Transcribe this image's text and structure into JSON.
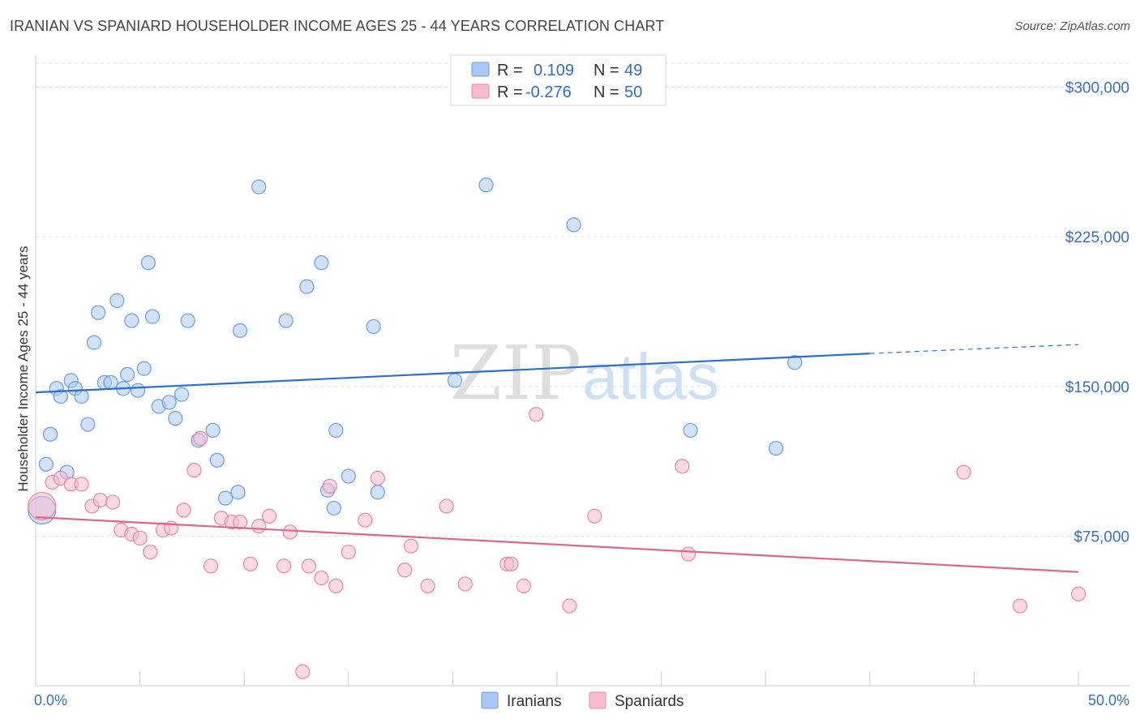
{
  "title": "IRANIAN VS SPANIARD HOUSEHOLDER INCOME AGES 25 - 44 YEARS CORRELATION CHART",
  "source": "Source: ZipAtlas.com",
  "watermark": {
    "zip": "ZIP",
    "atlas": "atlas"
  },
  "colors": {
    "iranians_fill": "#a9c9f2",
    "iranians_stroke": "#6b9ee0",
    "iranians_line": "#2a6fd0",
    "spaniards_fill": "#f7bccd",
    "spaniards_stroke": "#e8879f",
    "spaniards_line": "#e0648e",
    "tick_text": "#3a6fc4",
    "grid": "#dddddd"
  },
  "legend": {
    "rows": [
      {
        "r_label": "R =",
        "r_value": "0.109",
        "n_label": "N =",
        "n_value": "49"
      },
      {
        "r_label": "R =",
        "r_value": "-0.276",
        "n_label": "N =",
        "n_value": "50"
      }
    ]
  },
  "bottom_legend": [
    "Iranians",
    "Spaniards"
  ],
  "chart_data": {
    "type": "scatter",
    "title": "IRANIAN VS SPANIARD HOUSEHOLDER INCOME AGES 25 - 44 YEARS CORRELATION CHART",
    "xlabel": "",
    "ylabel": "Householder Income Ages 25 - 44 years",
    "xlim": [
      0,
      50
    ],
    "ylim": [
      0,
      312000
    ],
    "x_tick_labels": [
      "0.0%",
      "50.0%"
    ],
    "y_ticks": [
      75000,
      150000,
      225000,
      300000
    ],
    "y_tick_labels": [
      "$75,000",
      "$150,000",
      "$225,000",
      "$300,000"
    ],
    "grid": true,
    "legend_position": "top-center",
    "series": [
      {
        "name": "Iranians",
        "r": 0.109,
        "n": 49,
        "trend": {
          "x": [
            0,
            40,
            50
          ],
          "y": [
            147000,
            166500,
            171000
          ],
          "solid_until": 40
        },
        "points": [
          {
            "x": 0.3,
            "y": 88000,
            "big": true
          },
          {
            "x": 0.5,
            "y": 111000
          },
          {
            "x": 0.7,
            "y": 126000
          },
          {
            "x": 1.0,
            "y": 149000
          },
          {
            "x": 1.2,
            "y": 145000
          },
          {
            "x": 1.5,
            "y": 107000
          },
          {
            "x": 1.7,
            "y": 153000
          },
          {
            "x": 1.9,
            "y": 149000
          },
          {
            "x": 2.2,
            "y": 145000
          },
          {
            "x": 2.5,
            "y": 131000
          },
          {
            "x": 2.8,
            "y": 172000
          },
          {
            "x": 3.0,
            "y": 187000
          },
          {
            "x": 3.3,
            "y": 152000
          },
          {
            "x": 3.6,
            "y": 152000
          },
          {
            "x": 3.9,
            "y": 193000
          },
          {
            "x": 4.2,
            "y": 149000
          },
          {
            "x": 4.4,
            "y": 156000
          },
          {
            "x": 4.6,
            "y": 183000
          },
          {
            "x": 4.9,
            "y": 148000
          },
          {
            "x": 5.2,
            "y": 159000
          },
          {
            "x": 5.4,
            "y": 212000
          },
          {
            "x": 5.6,
            "y": 185000
          },
          {
            "x": 5.9,
            "y": 140000
          },
          {
            "x": 6.4,
            "y": 142000
          },
          {
            "x": 6.7,
            "y": 134000
          },
          {
            "x": 7.0,
            "y": 146000
          },
          {
            "x": 7.3,
            "y": 183000
          },
          {
            "x": 7.8,
            "y": 123000
          },
          {
            "x": 8.5,
            "y": 128000
          },
          {
            "x": 8.7,
            "y": 113000
          },
          {
            "x": 9.1,
            "y": 94000
          },
          {
            "x": 9.7,
            "y": 97000
          },
          {
            "x": 9.8,
            "y": 178000
          },
          {
            "x": 10.7,
            "y": 250000
          },
          {
            "x": 12.0,
            "y": 183000
          },
          {
            "x": 13.0,
            "y": 200000
          },
          {
            "x": 13.7,
            "y": 212000
          },
          {
            "x": 14.0,
            "y": 98000
          },
          {
            "x": 14.4,
            "y": 128000
          },
          {
            "x": 14.3,
            "y": 89000
          },
          {
            "x": 15.0,
            "y": 105000
          },
          {
            "x": 16.2,
            "y": 180000
          },
          {
            "x": 16.4,
            "y": 97000
          },
          {
            "x": 20.1,
            "y": 153000
          },
          {
            "x": 21.6,
            "y": 251000
          },
          {
            "x": 25.8,
            "y": 231000
          },
          {
            "x": 31.4,
            "y": 128000
          },
          {
            "x": 35.5,
            "y": 119000
          },
          {
            "x": 36.4,
            "y": 162000
          }
        ]
      },
      {
        "name": "Spaniards",
        "r": -0.276,
        "n": 50,
        "trend": {
          "x": [
            0,
            50
          ],
          "y": [
            84500,
            57000
          ]
        },
        "points": [
          {
            "x": 0.3,
            "y": 90000,
            "big": true
          },
          {
            "x": 0.8,
            "y": 102000
          },
          {
            "x": 1.2,
            "y": 104000
          },
          {
            "x": 1.7,
            "y": 101000
          },
          {
            "x": 2.2,
            "y": 101000
          },
          {
            "x": 2.7,
            "y": 90000
          },
          {
            "x": 3.1,
            "y": 93000
          },
          {
            "x": 3.7,
            "y": 92000
          },
          {
            "x": 4.1,
            "y": 78000
          },
          {
            "x": 4.6,
            "y": 76000
          },
          {
            "x": 5.0,
            "y": 74000
          },
          {
            "x": 5.5,
            "y": 67000
          },
          {
            "x": 6.1,
            "y": 78000
          },
          {
            "x": 6.5,
            "y": 79000
          },
          {
            "x": 7.1,
            "y": 88000
          },
          {
            "x": 7.6,
            "y": 108000
          },
          {
            "x": 7.9,
            "y": 124000
          },
          {
            "x": 8.4,
            "y": 60000
          },
          {
            "x": 8.9,
            "y": 84000
          },
          {
            "x": 9.4,
            "y": 82000
          },
          {
            "x": 9.8,
            "y": 82000
          },
          {
            "x": 10.3,
            "y": 61000
          },
          {
            "x": 10.7,
            "y": 80000
          },
          {
            "x": 11.2,
            "y": 85000
          },
          {
            "x": 11.9,
            "y": 60000
          },
          {
            "x": 12.2,
            "y": 77000
          },
          {
            "x": 12.8,
            "y": 7000
          },
          {
            "x": 13.1,
            "y": 60000
          },
          {
            "x": 13.7,
            "y": 54000
          },
          {
            "x": 14.1,
            "y": 100000
          },
          {
            "x": 14.4,
            "y": 50000
          },
          {
            "x": 15.0,
            "y": 67000
          },
          {
            "x": 15.8,
            "y": 83000
          },
          {
            "x": 16.4,
            "y": 104000
          },
          {
            "x": 17.7,
            "y": 58000
          },
          {
            "x": 18.0,
            "y": 70000
          },
          {
            "x": 18.8,
            "y": 50000
          },
          {
            "x": 19.7,
            "y": 90000
          },
          {
            "x": 20.6,
            "y": 51000
          },
          {
            "x": 22.6,
            "y": 61000
          },
          {
            "x": 22.8,
            "y": 61000
          },
          {
            "x": 23.4,
            "y": 50000
          },
          {
            "x": 24.0,
            "y": 136000
          },
          {
            "x": 25.6,
            "y": 40000
          },
          {
            "x": 26.8,
            "y": 85000
          },
          {
            "x": 31.0,
            "y": 110000
          },
          {
            "x": 31.3,
            "y": 66000
          },
          {
            "x": 44.5,
            "y": 107000
          },
          {
            "x": 47.2,
            "y": 40000
          },
          {
            "x": 50.0,
            "y": 46000
          }
        ]
      }
    ]
  }
}
